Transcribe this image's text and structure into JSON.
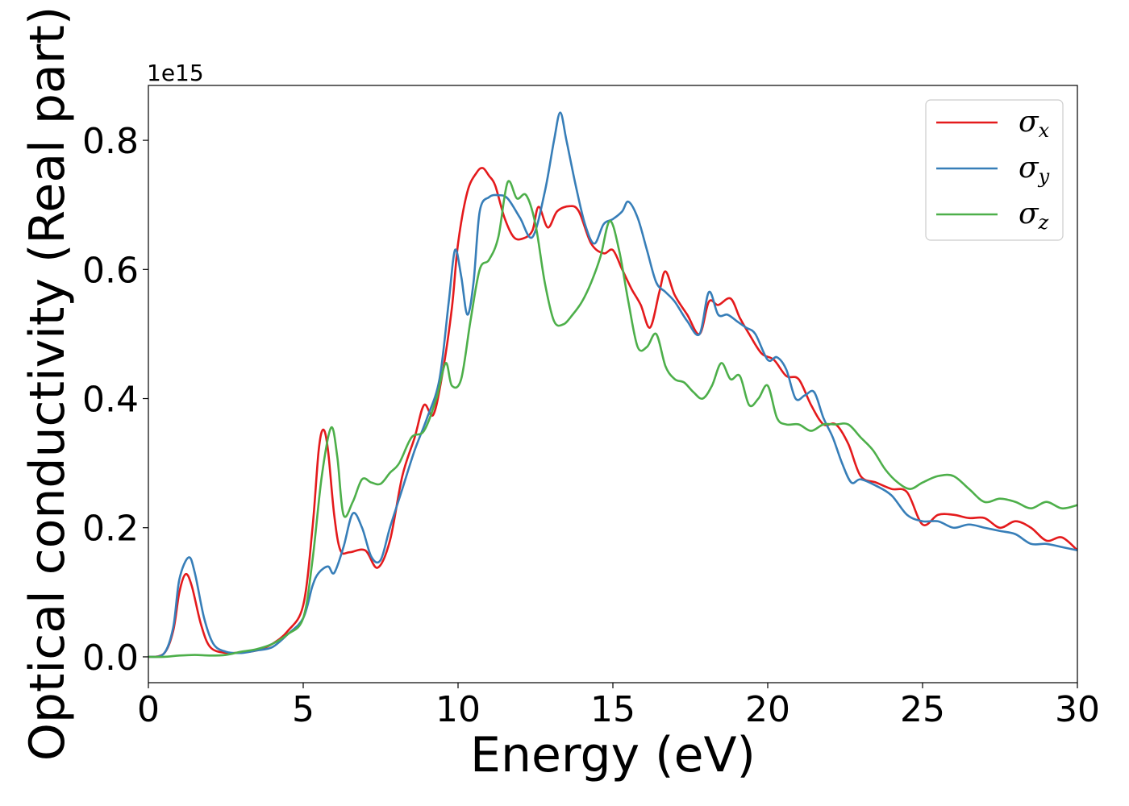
{
  "chart_data": {
    "type": "line",
    "xlabel": "Energy (eV)",
    "ylabel": "Optical conductivity (Real part)",
    "y_offset_label": "1e15",
    "xlim": [
      0,
      30
    ],
    "ylim": [
      -0.04,
      0.885
    ],
    "x_ticks": [
      0,
      5,
      10,
      15,
      20,
      25,
      30
    ],
    "x_tick_labels": [
      "0",
      "5",
      "10",
      "15",
      "20",
      "25",
      "30"
    ],
    "y_ticks": [
      0.0,
      0.2,
      0.4,
      0.6,
      0.8
    ],
    "y_tick_labels": [
      "0.0",
      "0.2",
      "0.4",
      "0.6",
      "0.8"
    ],
    "grid": false,
    "legend_position": "top-right",
    "colors": {
      "sigma_x": "#e41a1c",
      "sigma_y": "#377eb8",
      "sigma_z": "#4daf4a"
    },
    "series": [
      {
        "key": "sigma_x",
        "name": "σx",
        "symbol": "σ",
        "subscript": "x",
        "color": "#e41a1c",
        "x": [
          0,
          0.5,
          0.8,
          1.0,
          1.2,
          1.4,
          1.7,
          2.0,
          2.5,
          3.0,
          3.5,
          4.0,
          4.5,
          5.0,
          5.3,
          5.5,
          5.65,
          5.8,
          6.0,
          6.2,
          6.5,
          7.0,
          7.4,
          7.8,
          8.2,
          8.6,
          8.9,
          9.2,
          9.5,
          9.8,
          10.0,
          10.3,
          10.6,
          10.8,
          11.0,
          11.2,
          11.5,
          11.8,
          12.1,
          12.4,
          12.6,
          12.9,
          13.2,
          13.6,
          13.9,
          14.3,
          14.7,
          15.0,
          15.3,
          15.6,
          15.9,
          16.2,
          16.5,
          16.7,
          17.0,
          17.4,
          17.8,
          18.1,
          18.4,
          18.8,
          19.1,
          19.4,
          19.8,
          20.2,
          20.6,
          21.0,
          21.4,
          21.8,
          22.2,
          22.6,
          23.0,
          23.5,
          24.0,
          24.5,
          25.0,
          25.5,
          26.0,
          26.5,
          27.0,
          27.5,
          28.0,
          28.5,
          29.0,
          29.5,
          30.0
        ],
        "y": [
          0,
          0.005,
          0.04,
          0.1,
          0.128,
          0.11,
          0.05,
          0.015,
          0.006,
          0.007,
          0.01,
          0.02,
          0.04,
          0.08,
          0.2,
          0.32,
          0.352,
          0.32,
          0.22,
          0.165,
          0.162,
          0.165,
          0.138,
          0.18,
          0.28,
          0.34,
          0.39,
          0.375,
          0.44,
          0.54,
          0.64,
          0.72,
          0.75,
          0.757,
          0.745,
          0.73,
          0.68,
          0.65,
          0.648,
          0.66,
          0.697,
          0.665,
          0.69,
          0.698,
          0.69,
          0.64,
          0.625,
          0.63,
          0.6,
          0.57,
          0.545,
          0.51,
          0.565,
          0.597,
          0.56,
          0.53,
          0.5,
          0.55,
          0.545,
          0.555,
          0.525,
          0.5,
          0.47,
          0.46,
          0.435,
          0.43,
          0.39,
          0.36,
          0.36,
          0.33,
          0.28,
          0.27,
          0.26,
          0.255,
          0.205,
          0.22,
          0.22,
          0.215,
          0.215,
          0.2,
          0.21,
          0.2,
          0.18,
          0.185,
          0.165
        ]
      },
      {
        "key": "sigma_y",
        "name": "σy",
        "symbol": "σ",
        "subscript": "y",
        "color": "#377eb8",
        "x": [
          0,
          0.5,
          0.8,
          1.0,
          1.3,
          1.5,
          1.8,
          2.1,
          2.5,
          3.0,
          3.5,
          4.0,
          4.5,
          5.0,
          5.3,
          5.5,
          5.8,
          6.0,
          6.3,
          6.6,
          6.9,
          7.2,
          7.5,
          7.8,
          8.2,
          8.6,
          9.0,
          9.4,
          9.7,
          9.9,
          10.1,
          10.3,
          10.5,
          10.7,
          11.0,
          11.3,
          11.6,
          12.0,
          12.4,
          12.8,
          13.1,
          13.3,
          13.5,
          13.8,
          14.1,
          14.4,
          14.7,
          15.0,
          15.3,
          15.5,
          15.8,
          16.1,
          16.4,
          16.7,
          17.0,
          17.4,
          17.8,
          18.1,
          18.4,
          18.7,
          19.0,
          19.3,
          19.6,
          20.0,
          20.3,
          20.6,
          20.9,
          21.2,
          21.5,
          21.8,
          22.1,
          22.4,
          22.7,
          23.0,
          23.5,
          24.0,
          24.5,
          25.0,
          25.5,
          26.0,
          26.5,
          27.0,
          27.5,
          28.0,
          28.5,
          29.0,
          29.5,
          30.0
        ],
        "y": [
          0,
          0.005,
          0.045,
          0.12,
          0.154,
          0.13,
          0.06,
          0.02,
          0.008,
          0.006,
          0.01,
          0.015,
          0.035,
          0.06,
          0.11,
          0.13,
          0.14,
          0.13,
          0.17,
          0.222,
          0.2,
          0.155,
          0.15,
          0.2,
          0.26,
          0.32,
          0.37,
          0.43,
          0.55,
          0.63,
          0.59,
          0.53,
          0.58,
          0.69,
          0.712,
          0.715,
          0.71,
          0.68,
          0.65,
          0.72,
          0.8,
          0.843,
          0.8,
          0.73,
          0.67,
          0.64,
          0.67,
          0.678,
          0.69,
          0.705,
          0.68,
          0.63,
          0.58,
          0.565,
          0.55,
          0.52,
          0.5,
          0.565,
          0.53,
          0.53,
          0.52,
          0.51,
          0.5,
          0.46,
          0.464,
          0.445,
          0.4,
          0.405,
          0.41,
          0.37,
          0.34,
          0.3,
          0.27,
          0.275,
          0.265,
          0.25,
          0.22,
          0.21,
          0.21,
          0.2,
          0.205,
          0.2,
          0.195,
          0.19,
          0.175,
          0.175,
          0.17,
          0.165
        ]
      },
      {
        "key": "sigma_z",
        "name": "σz",
        "symbol": "σ",
        "subscript": "z",
        "color": "#4daf4a",
        "x": [
          0,
          0.5,
          1.0,
          1.5,
          2.0,
          2.5,
          3.0,
          3.5,
          4.0,
          4.5,
          5.0,
          5.3,
          5.6,
          5.9,
          6.1,
          6.3,
          6.6,
          6.9,
          7.2,
          7.5,
          7.8,
          8.1,
          8.5,
          8.9,
          9.3,
          9.6,
          9.8,
          10.1,
          10.4,
          10.7,
          11.0,
          11.3,
          11.6,
          11.9,
          12.2,
          12.5,
          12.8,
          13.1,
          13.4,
          13.7,
          14.0,
          14.3,
          14.6,
          14.9,
          15.2,
          15.5,
          15.8,
          16.1,
          16.4,
          16.7,
          17.0,
          17.3,
          17.6,
          17.9,
          18.2,
          18.5,
          18.8,
          19.1,
          19.4,
          19.7,
          20.0,
          20.3,
          20.6,
          21.0,
          21.4,
          21.8,
          22.2,
          22.6,
          23.0,
          23.4,
          23.8,
          24.2,
          24.6,
          25.0,
          25.5,
          26.0,
          26.5,
          27.0,
          27.5,
          28.0,
          28.5,
          29.0,
          29.5,
          30.0
        ],
        "y": [
          0,
          0,
          0.002,
          0.003,
          0.002,
          0.003,
          0.008,
          0.012,
          0.02,
          0.035,
          0.06,
          0.15,
          0.28,
          0.355,
          0.31,
          0.22,
          0.24,
          0.275,
          0.27,
          0.268,
          0.285,
          0.3,
          0.34,
          0.35,
          0.4,
          0.455,
          0.42,
          0.43,
          0.52,
          0.6,
          0.615,
          0.65,
          0.735,
          0.71,
          0.715,
          0.67,
          0.58,
          0.52,
          0.515,
          0.53,
          0.55,
          0.58,
          0.62,
          0.675,
          0.63,
          0.55,
          0.48,
          0.48,
          0.5,
          0.45,
          0.43,
          0.425,
          0.41,
          0.4,
          0.42,
          0.455,
          0.43,
          0.435,
          0.39,
          0.4,
          0.42,
          0.37,
          0.36,
          0.36,
          0.35,
          0.36,
          0.36,
          0.36,
          0.34,
          0.32,
          0.29,
          0.27,
          0.26,
          0.27,
          0.28,
          0.28,
          0.26,
          0.24,
          0.245,
          0.24,
          0.23,
          0.24,
          0.23,
          0.235
        ]
      }
    ]
  }
}
